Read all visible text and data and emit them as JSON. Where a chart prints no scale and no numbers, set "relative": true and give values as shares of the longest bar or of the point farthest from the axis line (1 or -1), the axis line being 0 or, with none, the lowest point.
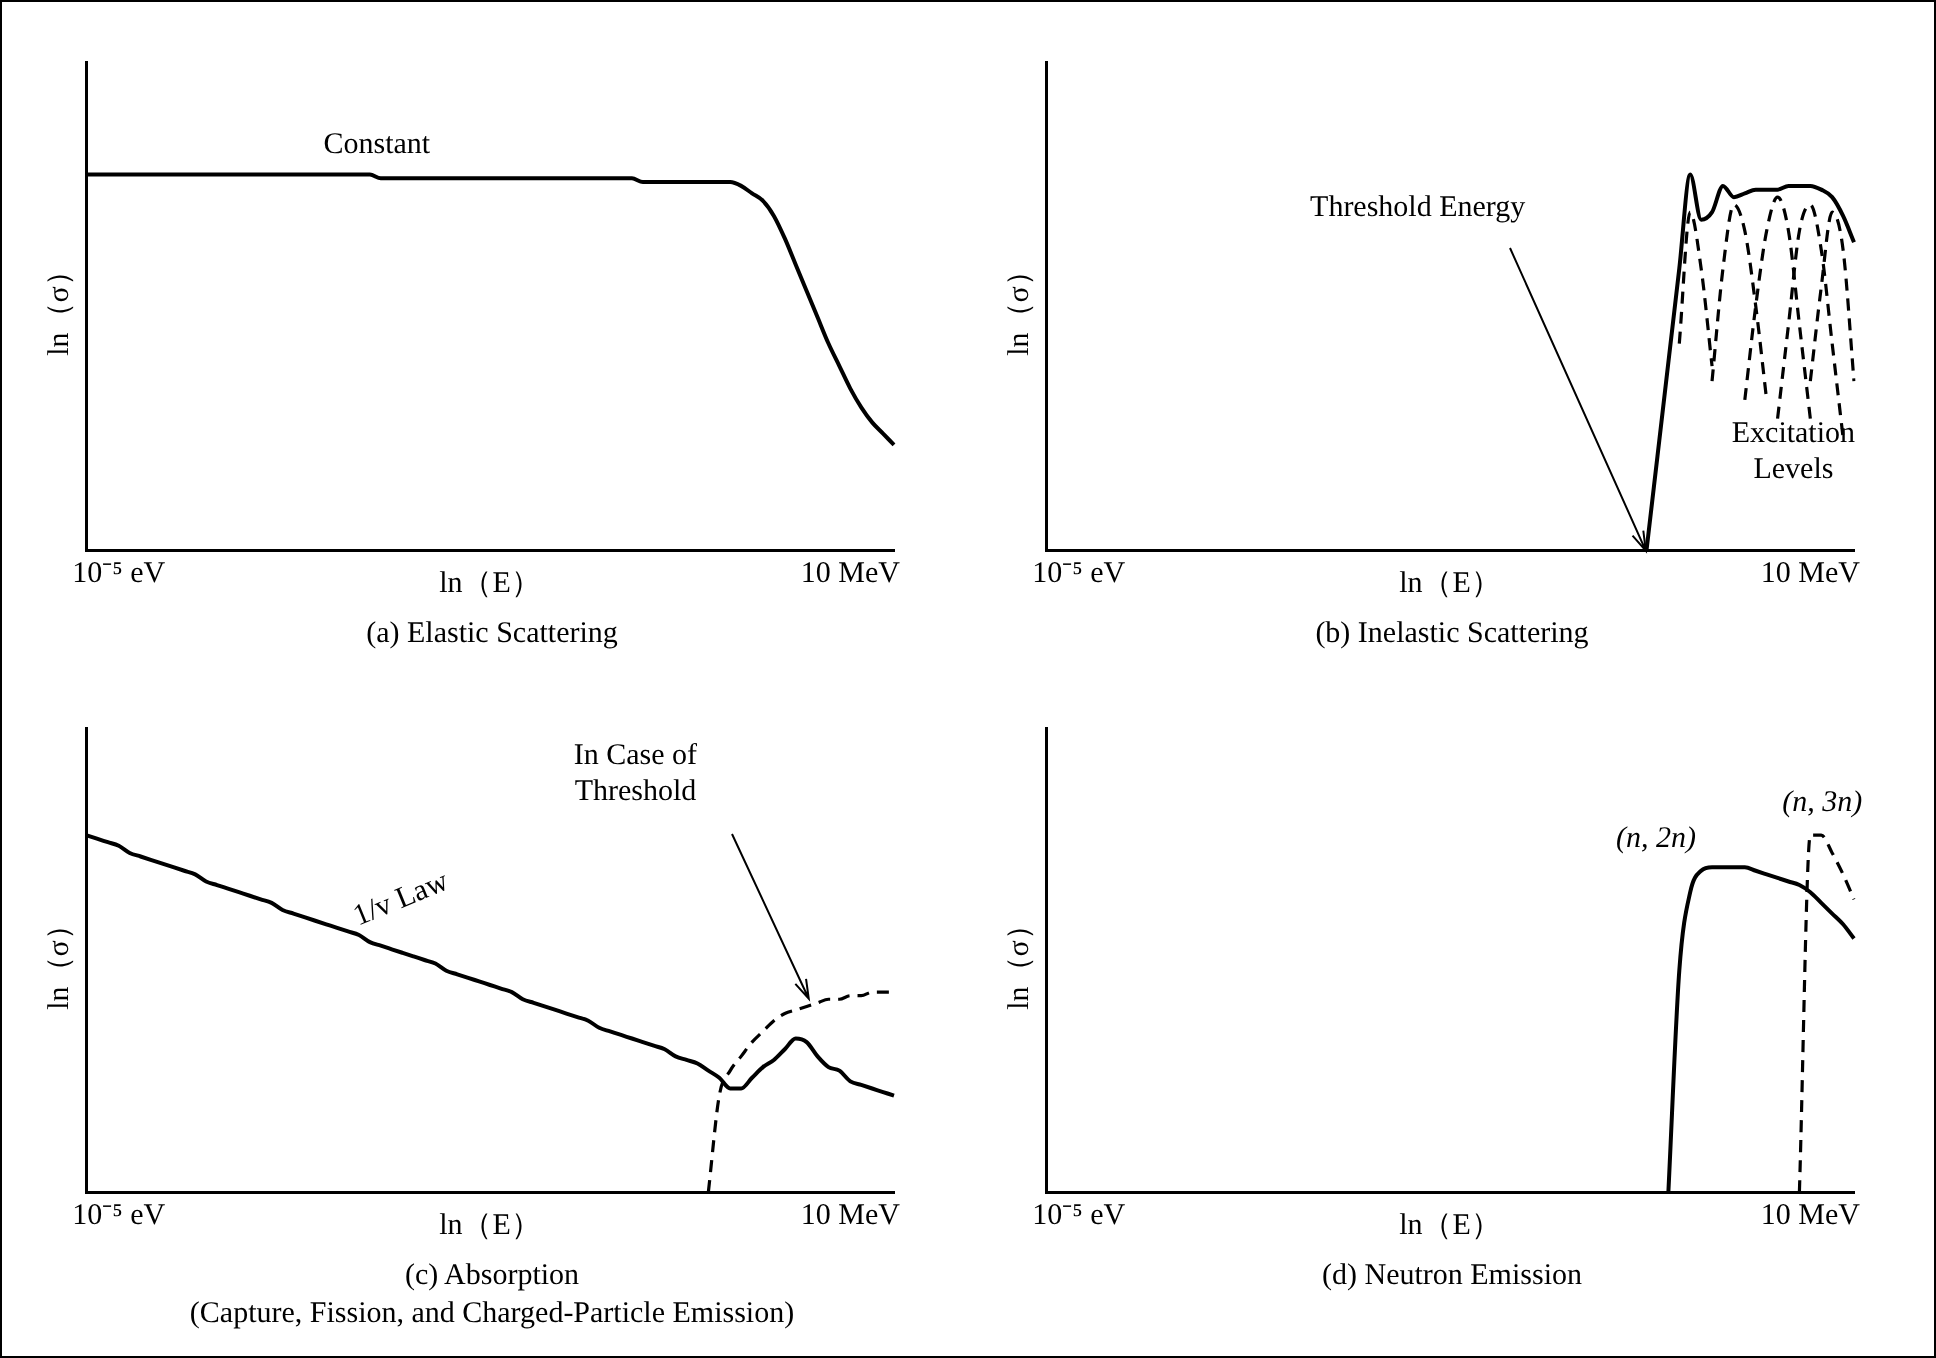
{
  "chart_data": [
    {
      "type": "line",
      "title": "(a) Elastic Scattering",
      "xlabel": "ln（E）",
      "ylabel": "ln（σ）",
      "relative": true,
      "tick_labels": "x",
      "marker": "none",
      "categories": [
        null,
        null,
        null,
        "10⁻⁵ eV",
        null,
        null,
        null,
        null,
        null,
        null,
        null,
        null,
        null,
        null,
        null,
        null,
        null,
        null,
        null,
        null,
        null,
        null,
        null,
        null,
        null,
        null,
        null,
        null,
        null,
        null,
        null,
        null,
        null,
        null,
        null,
        null,
        null,
        null,
        null,
        null,
        null,
        null,
        null,
        null,
        null,
        null,
        null,
        null,
        null,
        null,
        null,
        null,
        null,
        null,
        null,
        null,
        null,
        null,
        null,
        null,
        null,
        null,
        null,
        null,
        null,
        null,
        null,
        null,
        null,
        null,
        "10 MeV",
        null,
        null,
        null,
        null
      ],
      "series": [
        {
          "color": "#000000",
          "line_style": "solid",
          "values": [
            1,
            1,
            1,
            1,
            1,
            1,
            1,
            1,
            1,
            1,
            1,
            1,
            1,
            1,
            1,
            1,
            1,
            1,
            1,
            1,
            1,
            1,
            1,
            1,
            1,
            1,
            1,
            0.99,
            0.99,
            0.99,
            0.99,
            0.99,
            0.99,
            0.99,
            0.99,
            0.99,
            0.99,
            0.99,
            0.99,
            0.99,
            0.99,
            0.99,
            0.99,
            0.99,
            0.99,
            0.99,
            0.99,
            0.99,
            0.99,
            0.99,
            0.99,
            0.98,
            0.98,
            0.98,
            0.98,
            0.98,
            0.98,
            0.98,
            0.98,
            0.98,
            0.97,
            0.95,
            0.93,
            0.89,
            0.83,
            0.76,
            0.69,
            0.62,
            0.55,
            0.49,
            0.43,
            0.38,
            0.34,
            0.31,
            0.28
          ]
        }
      ],
      "annotations": [
        "Constant"
      ]
    },
    {
      "type": "line",
      "title": "(b) Inelastic Scattering",
      "xlabel": "ln（E）",
      "ylabel": "ln（σ）",
      "relative": true,
      "tick_labels": "x",
      "marker": "none",
      "categories": [
        null,
        null,
        null,
        "10⁻⁵ eV",
        null,
        null,
        null,
        null,
        null,
        null,
        null,
        null,
        null,
        null,
        null,
        null,
        null,
        null,
        null,
        null,
        null,
        null,
        null,
        null,
        null,
        null,
        null,
        null,
        null,
        null,
        null,
        null,
        null,
        null,
        null,
        null,
        null,
        null,
        null,
        null,
        null,
        null,
        null,
        null,
        null,
        null,
        null,
        null,
        null,
        null,
        null,
        null,
        null,
        null,
        null,
        null,
        null,
        null,
        null,
        null,
        null,
        null,
        null,
        null,
        null,
        null,
        null,
        null,
        null,
        null,
        "10 MeV",
        null,
        null,
        null,
        null
      ],
      "series": [
        {
          "color": "#000000",
          "line_style": "solid",
          "values": [
            null,
            null,
            null,
            null,
            null,
            null,
            null,
            null,
            null,
            null,
            null,
            null,
            null,
            null,
            null,
            null,
            null,
            null,
            null,
            null,
            null,
            null,
            null,
            null,
            null,
            null,
            null,
            null,
            null,
            null,
            null,
            null,
            null,
            null,
            null,
            null,
            null,
            null,
            null,
            null,
            null,
            null,
            null,
            null,
            null,
            null,
            null,
            null,
            null,
            null,
            null,
            null,
            null,
            null,
            null,
            0,
            0.25,
            0.5,
            0.75,
            1,
            0.88,
            0.9,
            0.97,
            0.94,
            0.95,
            0.96,
            0.96,
            0.96,
            0.97,
            0.97,
            0.97,
            0.96,
            0.94,
            0.89,
            0.82
          ]
        },
        {
          "color": "#000000",
          "line_style": "dashed",
          "values": [
            null,
            null,
            null,
            null,
            null,
            null,
            null,
            null,
            null,
            null,
            null,
            null,
            null,
            null,
            null,
            null,
            null,
            null,
            null,
            null,
            null,
            null,
            null,
            null,
            null,
            null,
            null,
            null,
            null,
            null,
            null,
            null,
            null,
            null,
            null,
            null,
            null,
            null,
            null,
            null,
            null,
            null,
            null,
            null,
            null,
            null,
            null,
            null,
            null,
            null,
            null,
            null,
            null,
            null,
            null,
            null,
            null,
            null,
            0.55,
            0.9,
            0.75,
            0.49,
            null,
            null,
            null,
            null,
            null,
            null,
            null,
            null,
            null,
            null,
            null,
            null,
            null
          ]
        },
        {
          "color": "#000000",
          "line_style": "dashed",
          "values": [
            null,
            null,
            null,
            null,
            null,
            null,
            null,
            null,
            null,
            null,
            null,
            null,
            null,
            null,
            null,
            null,
            null,
            null,
            null,
            null,
            null,
            null,
            null,
            null,
            null,
            null,
            null,
            null,
            null,
            null,
            null,
            null,
            null,
            null,
            null,
            null,
            null,
            null,
            null,
            null,
            null,
            null,
            null,
            null,
            null,
            null,
            null,
            null,
            null,
            null,
            null,
            null,
            null,
            null,
            null,
            null,
            null,
            null,
            null,
            null,
            null,
            0.45,
            0.75,
            0.92,
            0.85,
            0.65,
            0.4,
            null,
            null,
            null,
            null,
            null,
            null,
            null,
            null
          ]
        },
        {
          "color": "#000000",
          "line_style": "dashed",
          "values": [
            null,
            null,
            null,
            null,
            null,
            null,
            null,
            null,
            null,
            null,
            null,
            null,
            null,
            null,
            null,
            null,
            null,
            null,
            null,
            null,
            null,
            null,
            null,
            null,
            null,
            null,
            null,
            null,
            null,
            null,
            null,
            null,
            null,
            null,
            null,
            null,
            null,
            null,
            null,
            null,
            null,
            null,
            null,
            null,
            null,
            null,
            null,
            null,
            null,
            null,
            null,
            null,
            null,
            null,
            null,
            null,
            null,
            null,
            null,
            null,
            null,
            null,
            null,
            null,
            0.4,
            0.65,
            0.85,
            0.94,
            0.85,
            0.6,
            0.35,
            null,
            null,
            null,
            null
          ]
        },
        {
          "color": "#000000",
          "line_style": "dashed",
          "values": [
            null,
            null,
            null,
            null,
            null,
            null,
            null,
            null,
            null,
            null,
            null,
            null,
            null,
            null,
            null,
            null,
            null,
            null,
            null,
            null,
            null,
            null,
            null,
            null,
            null,
            null,
            null,
            null,
            null,
            null,
            null,
            null,
            null,
            null,
            null,
            null,
            null,
            null,
            null,
            null,
            null,
            null,
            null,
            null,
            null,
            null,
            null,
            null,
            null,
            null,
            null,
            null,
            null,
            null,
            null,
            null,
            null,
            null,
            null,
            null,
            null,
            null,
            null,
            null,
            null,
            null,
            null,
            0.35,
            0.6,
            0.85,
            0.92,
            0.8,
            0.55,
            0.3,
            null
          ]
        },
        {
          "color": "#000000",
          "line_style": "dashed",
          "values": [
            null,
            null,
            null,
            null,
            null,
            null,
            null,
            null,
            null,
            null,
            null,
            null,
            null,
            null,
            null,
            null,
            null,
            null,
            null,
            null,
            null,
            null,
            null,
            null,
            null,
            null,
            null,
            null,
            null,
            null,
            null,
            null,
            null,
            null,
            null,
            null,
            null,
            null,
            null,
            null,
            null,
            null,
            null,
            null,
            null,
            null,
            null,
            null,
            null,
            null,
            null,
            null,
            null,
            null,
            null,
            null,
            null,
            null,
            null,
            null,
            null,
            null,
            null,
            null,
            null,
            null,
            null,
            null,
            null,
            null,
            0.45,
            0.7,
            0.9,
            0.8,
            0.45
          ]
        }
      ],
      "annotations": [
        "Threshold Energy",
        "Excitation Levels"
      ]
    },
    {
      "type": "line",
      "title": "(c) Absorption",
      "subtitle": "(Capture, Fission, and Charged-Particle Emission)",
      "xlabel": "ln（E）",
      "ylabel": "ln（σ）",
      "relative": true,
      "tick_labels": "x",
      "marker": "none",
      "categories": [
        null,
        null,
        null,
        "10⁻⁵ eV",
        null,
        null,
        null,
        null,
        null,
        null,
        null,
        null,
        null,
        null,
        null,
        null,
        null,
        null,
        null,
        null,
        null,
        null,
        null,
        null,
        null,
        null,
        null,
        null,
        null,
        null,
        null,
        null,
        null,
        null,
        null,
        null,
        null,
        null,
        null,
        null,
        null,
        null,
        null,
        null,
        null,
        null,
        null,
        null,
        null,
        null,
        null,
        null,
        null,
        null,
        null,
        null,
        null,
        null,
        null,
        null,
        null,
        null,
        null,
        null,
        null,
        null,
        null,
        null,
        null,
        null,
        "10 MeV",
        null,
        null,
        null,
        null
      ],
      "series": [
        {
          "color": "#000000",
          "line_style": "solid",
          "values": [
            1,
            0.99,
            0.98,
            0.97,
            0.95,
            0.94,
            0.93,
            0.92,
            0.91,
            0.9,
            0.89,
            0.87,
            0.86,
            0.85,
            0.84,
            0.83,
            0.82,
            0.81,
            0.79,
            0.78,
            0.77,
            0.76,
            0.75,
            0.74,
            0.73,
            0.72,
            0.7,
            0.69,
            0.68,
            0.67,
            0.66,
            0.65,
            0.64,
            0.62,
            0.61,
            0.6,
            0.59,
            0.58,
            0.57,
            0.56,
            0.54,
            0.53,
            0.52,
            0.51,
            0.5,
            0.49,
            0.48,
            0.46,
            0.45,
            0.44,
            0.43,
            0.42,
            0.41,
            0.4,
            0.38,
            0.37,
            0.36,
            0.34,
            0.32,
            0.29,
            0.29,
            0.32,
            0.35,
            0.37,
            0.4,
            0.43,
            0.42,
            0.38,
            0.35,
            0.34,
            0.31,
            0.3,
            0.29,
            0.28,
            0.27
          ]
        },
        {
          "color": "#000000",
          "line_style": "dashed",
          "values": [
            null,
            null,
            null,
            null,
            null,
            null,
            null,
            null,
            null,
            null,
            null,
            null,
            null,
            null,
            null,
            null,
            null,
            null,
            null,
            null,
            null,
            null,
            null,
            null,
            null,
            null,
            null,
            null,
            null,
            null,
            null,
            null,
            null,
            null,
            null,
            null,
            null,
            null,
            null,
            null,
            null,
            null,
            null,
            null,
            null,
            null,
            null,
            null,
            null,
            null,
            null,
            null,
            null,
            null,
            null,
            null,
            null,
            0,
            0.27,
            0.34,
            0.38,
            0.42,
            0.45,
            0.48,
            0.5,
            0.51,
            0.52,
            0.53,
            0.54,
            0.54,
            0.55,
            0.55,
            0.56,
            0.56,
            0.56
          ]
        }
      ],
      "annotations": [
        "1/v Law",
        "In Case of Threshold"
      ]
    },
    {
      "type": "line",
      "title": "(d) Neutron Emission",
      "xlabel": "ln（E）",
      "ylabel": "ln（σ）",
      "relative": true,
      "tick_labels": "x",
      "marker": "none",
      "categories": [
        null,
        null,
        null,
        "10⁻⁵ eV",
        null,
        null,
        null,
        null,
        null,
        null,
        null,
        null,
        null,
        null,
        null,
        null,
        null,
        null,
        null,
        null,
        null,
        null,
        null,
        null,
        null,
        null,
        null,
        null,
        null,
        null,
        null,
        null,
        null,
        null,
        null,
        null,
        null,
        null,
        null,
        null,
        null,
        null,
        null,
        null,
        null,
        null,
        null,
        null,
        null,
        null,
        null,
        null,
        null,
        null,
        null,
        null,
        null,
        null,
        null,
        null,
        null,
        null,
        null,
        null,
        null,
        null,
        null,
        null,
        null,
        null,
        "10 MeV",
        null,
        null,
        null,
        null
      ],
      "series": [
        {
          "name": "(n, 2n)",
          "color": "#000000",
          "line_style": "solid",
          "values": [
            null,
            null,
            null,
            null,
            null,
            null,
            null,
            null,
            null,
            null,
            null,
            null,
            null,
            null,
            null,
            null,
            null,
            null,
            null,
            null,
            null,
            null,
            null,
            null,
            null,
            null,
            null,
            null,
            null,
            null,
            null,
            null,
            null,
            null,
            null,
            null,
            null,
            null,
            null,
            null,
            null,
            null,
            null,
            null,
            null,
            null,
            null,
            null,
            null,
            null,
            null,
            null,
            null,
            null,
            null,
            null,
            null,
            0,
            0.62,
            0.84,
            0.9,
            0.91,
            0.91,
            0.91,
            0.91,
            0.9,
            0.89,
            0.88,
            0.87,
            0.86,
            0.84,
            0.81,
            0.78,
            0.75,
            0.71
          ]
        },
        {
          "name": "(n, 3n)",
          "color": "#000000",
          "line_style": "dashed",
          "values": [
            null,
            null,
            null,
            null,
            null,
            null,
            null,
            null,
            null,
            null,
            null,
            null,
            null,
            null,
            null,
            null,
            null,
            null,
            null,
            null,
            null,
            null,
            null,
            null,
            null,
            null,
            null,
            null,
            null,
            null,
            null,
            null,
            null,
            null,
            null,
            null,
            null,
            null,
            null,
            null,
            null,
            null,
            null,
            null,
            null,
            null,
            null,
            null,
            null,
            null,
            null,
            null,
            null,
            null,
            null,
            null,
            null,
            null,
            null,
            null,
            null,
            null,
            null,
            null,
            null,
            null,
            null,
            null,
            null,
            0,
            1,
            1,
            0.95,
            0.89,
            0.82
          ]
        }
      ]
    }
  ]
}
